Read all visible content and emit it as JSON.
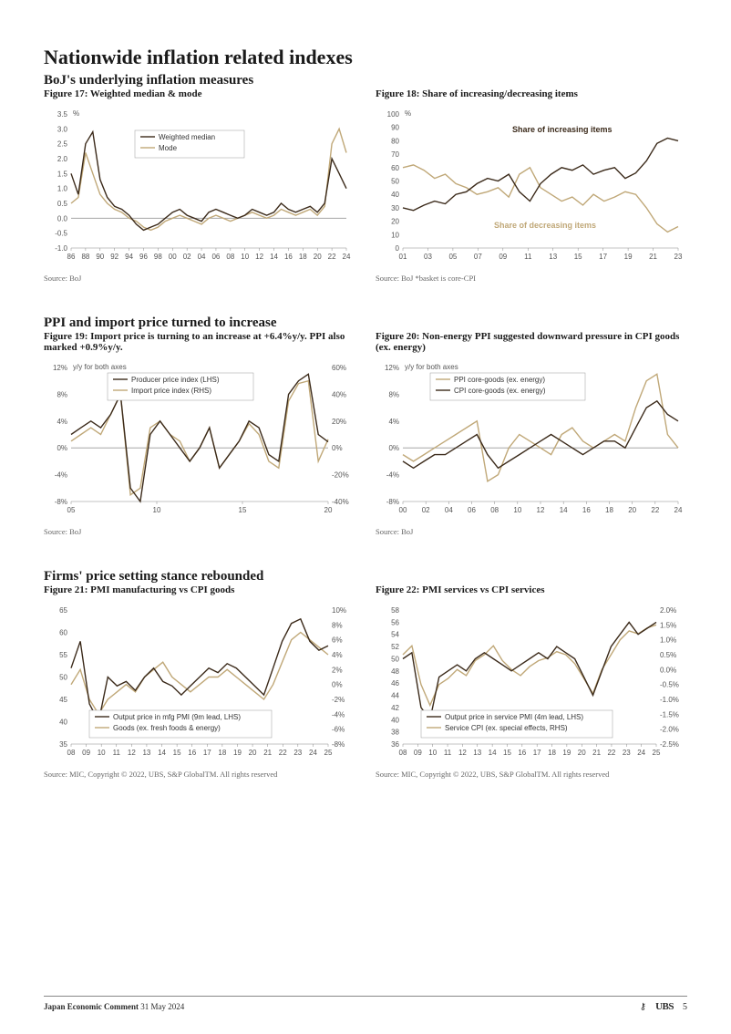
{
  "page": {
    "main_title": "Nationwide inflation related indexes",
    "footer_title": "Japan Economic Comment",
    "footer_date": "31 May 2024",
    "brand": "UBS",
    "page_number": "5"
  },
  "colors": {
    "dark_line": "#3b2a1a",
    "tan_line": "#c0a878",
    "grid": "#d0d0d0",
    "axis": "#888888",
    "zero_line": "#999999"
  },
  "sections": [
    {
      "title": "BoJ's underlying inflation measures"
    },
    {
      "title": "PPI and import price turned to increase"
    },
    {
      "title": "Firms' price setting stance rebounded"
    }
  ],
  "fig17": {
    "title": "Figure 17: Weighted median & mode",
    "unit": "%",
    "ylim": [
      -1.0,
      3.5
    ],
    "ytick_step": 0.5,
    "x_labels": [
      "86",
      "88",
      "90",
      "92",
      "94",
      "96",
      "98",
      "00",
      "02",
      "04",
      "06",
      "08",
      "10",
      "12",
      "14",
      "16",
      "18",
      "20",
      "22",
      "24"
    ],
    "legend": [
      "Weighted median",
      "Mode"
    ],
    "series": {
      "median": [
        1.5,
        0.8,
        2.5,
        2.9,
        1.3,
        0.7,
        0.4,
        0.3,
        0.1,
        -0.2,
        -0.4,
        -0.3,
        -0.2,
        0.0,
        0.2,
        0.3,
        0.1,
        0.0,
        -0.1,
        0.2,
        0.3,
        0.2,
        0.1,
        0.0,
        0.1,
        0.3,
        0.2,
        0.1,
        0.2,
        0.5,
        0.3,
        0.2,
        0.3,
        0.4,
        0.2,
        0.5,
        2.0,
        1.5,
        1.0
      ],
      "mode": [
        0.5,
        0.7,
        2.2,
        1.5,
        0.8,
        0.5,
        0.3,
        0.2,
        0.0,
        -0.1,
        -0.3,
        -0.4,
        -0.3,
        -0.1,
        0.0,
        0.1,
        0.0,
        -0.1,
        -0.2,
        0.0,
        0.1,
        0.0,
        -0.1,
        0.0,
        0.1,
        0.2,
        0.1,
        0.0,
        0.1,
        0.3,
        0.2,
        0.1,
        0.2,
        0.3,
        0.1,
        0.4,
        2.5,
        3.0,
        2.2
      ]
    },
    "source": "Source: BoJ"
  },
  "fig18": {
    "title": "Figure 18: Share of increasing/decreasing items",
    "unit": "%",
    "ylim": [
      0,
      100
    ],
    "ytick_step": 10,
    "x_labels": [
      "01",
      "03",
      "05",
      "07",
      "09",
      "11",
      "13",
      "15",
      "17",
      "19",
      "21",
      "23"
    ],
    "annot": {
      "inc": "Share of increasing items",
      "dec": "Share of decreasing items"
    },
    "series": {
      "inc": [
        30,
        28,
        32,
        35,
        33,
        40,
        42,
        48,
        52,
        50,
        55,
        42,
        35,
        48,
        55,
        60,
        58,
        62,
        55,
        58,
        60,
        52,
        56,
        65,
        78,
        82,
        80
      ],
      "dec": [
        60,
        62,
        58,
        52,
        55,
        48,
        45,
        40,
        42,
        45,
        38,
        55,
        60,
        45,
        40,
        35,
        38,
        32,
        40,
        35,
        38,
        42,
        40,
        30,
        18,
        12,
        16
      ]
    },
    "source": "Source: BoJ *basket is core-CPI"
  },
  "fig19": {
    "title": "Figure 19: Import price is turning to an increase at +6.4%y/y. PPI also marked +0.9%y/y.",
    "unit": "y/y for both axes",
    "ylim_l": [
      -8,
      12
    ],
    "ytick_l": 4,
    "ylim_r": [
      -40,
      60
    ],
    "ytick_r": 20,
    "x_labels": [
      "05",
      "10",
      "15",
      "20"
    ],
    "legend": [
      "Producer price index (LHS)",
      "Import price index (RHS)"
    ],
    "series": {
      "ppi": [
        2,
        3,
        4,
        3,
        5,
        8,
        -6,
        -8,
        2,
        4,
        2,
        0,
        -2,
        0,
        3,
        -3,
        -1,
        1,
        4,
        3,
        -1,
        -2,
        8,
        10,
        11,
        2,
        0.9
      ],
      "import": [
        5,
        10,
        15,
        10,
        25,
        40,
        -35,
        -30,
        15,
        20,
        10,
        5,
        -10,
        0,
        15,
        -15,
        -5,
        5,
        18,
        10,
        -10,
        -15,
        35,
        48,
        50,
        -10,
        6.4
      ]
    },
    "source": "Source: BoJ"
  },
  "fig20": {
    "title": "Figure 20: Non-energy PPI suggested downward pressure in CPI goods (ex. energy)",
    "unit": "y/y for both axes",
    "ylim": [
      -8,
      12
    ],
    "ytick_step": 4,
    "x_labels": [
      "00",
      "02",
      "04",
      "06",
      "08",
      "10",
      "12",
      "14",
      "16",
      "18",
      "20",
      "22",
      "24"
    ],
    "legend": [
      "PPI core-goods (ex. energy)",
      "CPI core-goods (ex. energy)"
    ],
    "series": {
      "ppi": [
        -1,
        -2,
        -1,
        0,
        1,
        2,
        3,
        4,
        -5,
        -4,
        0,
        2,
        1,
        0,
        -1,
        2,
        3,
        1,
        0,
        1,
        2,
        1,
        6,
        10,
        11,
        2,
        0
      ],
      "cpi": [
        -2,
        -3,
        -2,
        -1,
        -1,
        0,
        1,
        2,
        -1,
        -3,
        -2,
        -1,
        0,
        1,
        2,
        1,
        0,
        -1,
        0,
        1,
        1,
        0,
        3,
        6,
        7,
        5,
        4
      ]
    },
    "source": "Source: BoJ"
  },
  "fig21": {
    "title": "Figure 21: PMI manufacturing vs CPI goods",
    "ylim_l": [
      35,
      65
    ],
    "ytick_l": 5,
    "ylim_r": [
      -8,
      10
    ],
    "ytick_r": 2,
    "x_labels": [
      "08",
      "09",
      "10",
      "11",
      "12",
      "13",
      "14",
      "15",
      "16",
      "17",
      "18",
      "19",
      "20",
      "21",
      "22",
      "23",
      "24",
      "25"
    ],
    "legend": [
      "Output price in mfg PMI (9m lead, LHS)",
      "Goods (ex. fresh foods & energy)"
    ],
    "series": {
      "pmi": [
        52,
        58,
        44,
        40,
        50,
        48,
        49,
        47,
        50,
        52,
        49,
        48,
        46,
        48,
        50,
        52,
        51,
        53,
        52,
        50,
        48,
        46,
        52,
        58,
        62,
        63,
        58,
        56,
        57
      ],
      "goods": [
        0,
        2,
        -2,
        -4,
        -2,
        -1,
        0,
        -1,
        1,
        2,
        3,
        1,
        0,
        -1,
        0,
        1,
        1,
        2,
        1,
        0,
        -1,
        -2,
        0,
        3,
        6,
        7,
        6,
        5,
        4
      ]
    },
    "source": "Source: MIC, Copyright © 2022, UBS, S&P GlobalTM. All rights reserved"
  },
  "fig22": {
    "title": "Figure 22: PMI services vs CPI services",
    "ylim_l": [
      36,
      58
    ],
    "ytick_l": 2,
    "ylim_r": [
      -2.5,
      2.0
    ],
    "ytick_r": 0.5,
    "x_labels": [
      "08",
      "09",
      "10",
      "11",
      "12",
      "13",
      "14",
      "15",
      "16",
      "17",
      "18",
      "19",
      "20",
      "21",
      "22",
      "23",
      "24",
      "25"
    ],
    "legend": [
      "Output price in service PMI (4m lead, LHS)",
      "Service CPI (ex. special effects, RHS)"
    ],
    "series": {
      "pmi": [
        50,
        51,
        42,
        40,
        47,
        48,
        49,
        48,
        50,
        51,
        50,
        49,
        48,
        49,
        50,
        51,
        50,
        52,
        51,
        50,
        47,
        44,
        48,
        52,
        54,
        56,
        54,
        55,
        56
      ],
      "svc": [
        0.5,
        0.8,
        -0.5,
        -1.2,
        -0.5,
        -0.3,
        0.0,
        -0.2,
        0.3,
        0.5,
        0.8,
        0.3,
        0.0,
        -0.2,
        0.1,
        0.3,
        0.4,
        0.6,
        0.5,
        0.2,
        -0.3,
        -0.8,
        0.0,
        0.5,
        1.0,
        1.3,
        1.2,
        1.4,
        1.5
      ]
    },
    "source": "Source: MIC, Copyright © 2022, UBS, S&P GlobalTM. All rights reserved"
  }
}
